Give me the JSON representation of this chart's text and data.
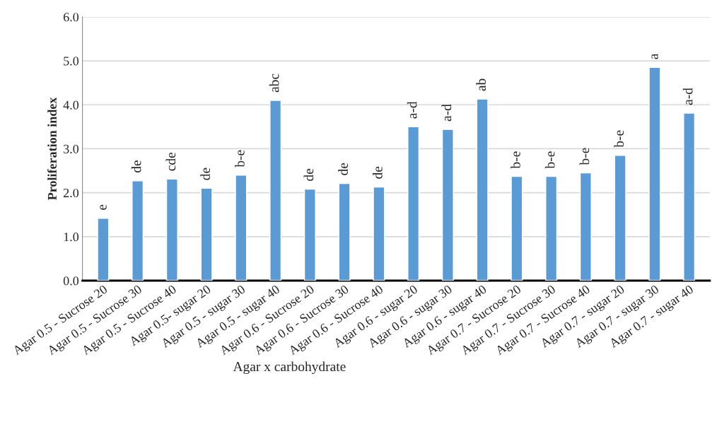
{
  "chart_data": {
    "type": "bar",
    "xlabel": "Agar x carbohydrate",
    "ylabel": "Proliferation index",
    "categories": [
      "Agar 0.5 - Sucrose 20",
      "Agar 0.5 - Sucrose 30",
      "Agar 0.5 - Sucrose 40",
      "Agar 0.5- sugar 20",
      "Agar 0.5 - sugar 30",
      "Agar 0.5 - sugar 40",
      "Agar 0.6 - Sucrose 20",
      "Agar 0.6 - Sucrose 30",
      "Agar 0.6 - Sucrose 40",
      "Agar 0.6 - sugar 20",
      "Agar 0.6 - sugar 30",
      "Agar 0.6 - sugar 40",
      "Agar 0.7 - Sucrose 20",
      "Agar 0.7 - Sucrose 30",
      "Agar 0.7 - Sucrose 40",
      "Agar 0.7 - sugar 20",
      "Agar 0.7 - sugar 30",
      "Agar 0.7 - sugar 40"
    ],
    "series": [
      {
        "color": "#5b9bd5",
        "values": [
          1.42,
          2.27,
          2.31,
          2.1,
          2.4,
          4.1,
          2.08,
          2.21,
          2.13,
          3.5,
          3.44,
          4.13,
          2.37,
          2.37,
          2.45,
          2.85,
          4.85,
          3.81
        ]
      }
    ],
    "annotations": [
      {
        "text": "e",
        "x": "Agar 0.5 - Sucrose 20",
        "y": 1.42
      },
      {
        "text": "de",
        "x": "Agar 0.5 - Sucrose 30",
        "y": 2.27
      },
      {
        "text": "cde",
        "x": "Agar 0.5 - Sucrose 40",
        "y": 2.31
      },
      {
        "text": "de",
        "x": "Agar 0.5- sugar 20",
        "y": 2.1
      },
      {
        "text": "b-e",
        "x": "Agar 0.5 - sugar 30",
        "y": 2.4
      },
      {
        "text": "abc",
        "x": "Agar 0.5 - sugar 40",
        "y": 4.1
      },
      {
        "text": "de",
        "x": "Agar 0.6 - Sucrose 20",
        "y": 2.08
      },
      {
        "text": "de",
        "x": "Agar 0.6 - Sucrose 30",
        "y": 2.21
      },
      {
        "text": "de",
        "x": "Agar 0.6 - Sucrose 40",
        "y": 2.13
      },
      {
        "text": "a-d",
        "x": "Agar 0.6 - sugar 20",
        "y": 3.5
      },
      {
        "text": "a-d",
        "x": "Agar 0.6 - sugar 30",
        "y": 3.44
      },
      {
        "text": "ab",
        "x": "Agar 0.6 - sugar 40",
        "y": 4.13
      },
      {
        "text": "b-e",
        "x": "Agar 0.7 - Sucrose 20",
        "y": 2.37
      },
      {
        "text": "b-e",
        "x": "Agar 0.7 - Sucrose 30",
        "y": 2.37
      },
      {
        "text": "b-e",
        "x": "Agar 0.7 - Sucrose 40",
        "y": 2.45
      },
      {
        "text": "b-e",
        "x": "Agar 0.7 - sugar 20",
        "y": 2.85
      },
      {
        "text": "a",
        "x": "Agar 0.7 - sugar 30",
        "y": 4.85
      },
      {
        "text": "a-d",
        "x": "Agar 0.7 - sugar 40",
        "y": 3.81
      }
    ],
    "ylim": [
      0,
      6
    ],
    "yticks": [
      {
        "value": 0,
        "label": "0.0"
      },
      {
        "value": 1,
        "label": "1.0"
      },
      {
        "value": 2,
        "label": "2.0"
      },
      {
        "value": 3,
        "label": "3.0"
      },
      {
        "value": 4,
        "label": "4.0"
      },
      {
        "value": 5,
        "label": "5.0"
      },
      {
        "value": 6,
        "label": "6.0"
      }
    ],
    "grid": "y",
    "legend": false
  }
}
